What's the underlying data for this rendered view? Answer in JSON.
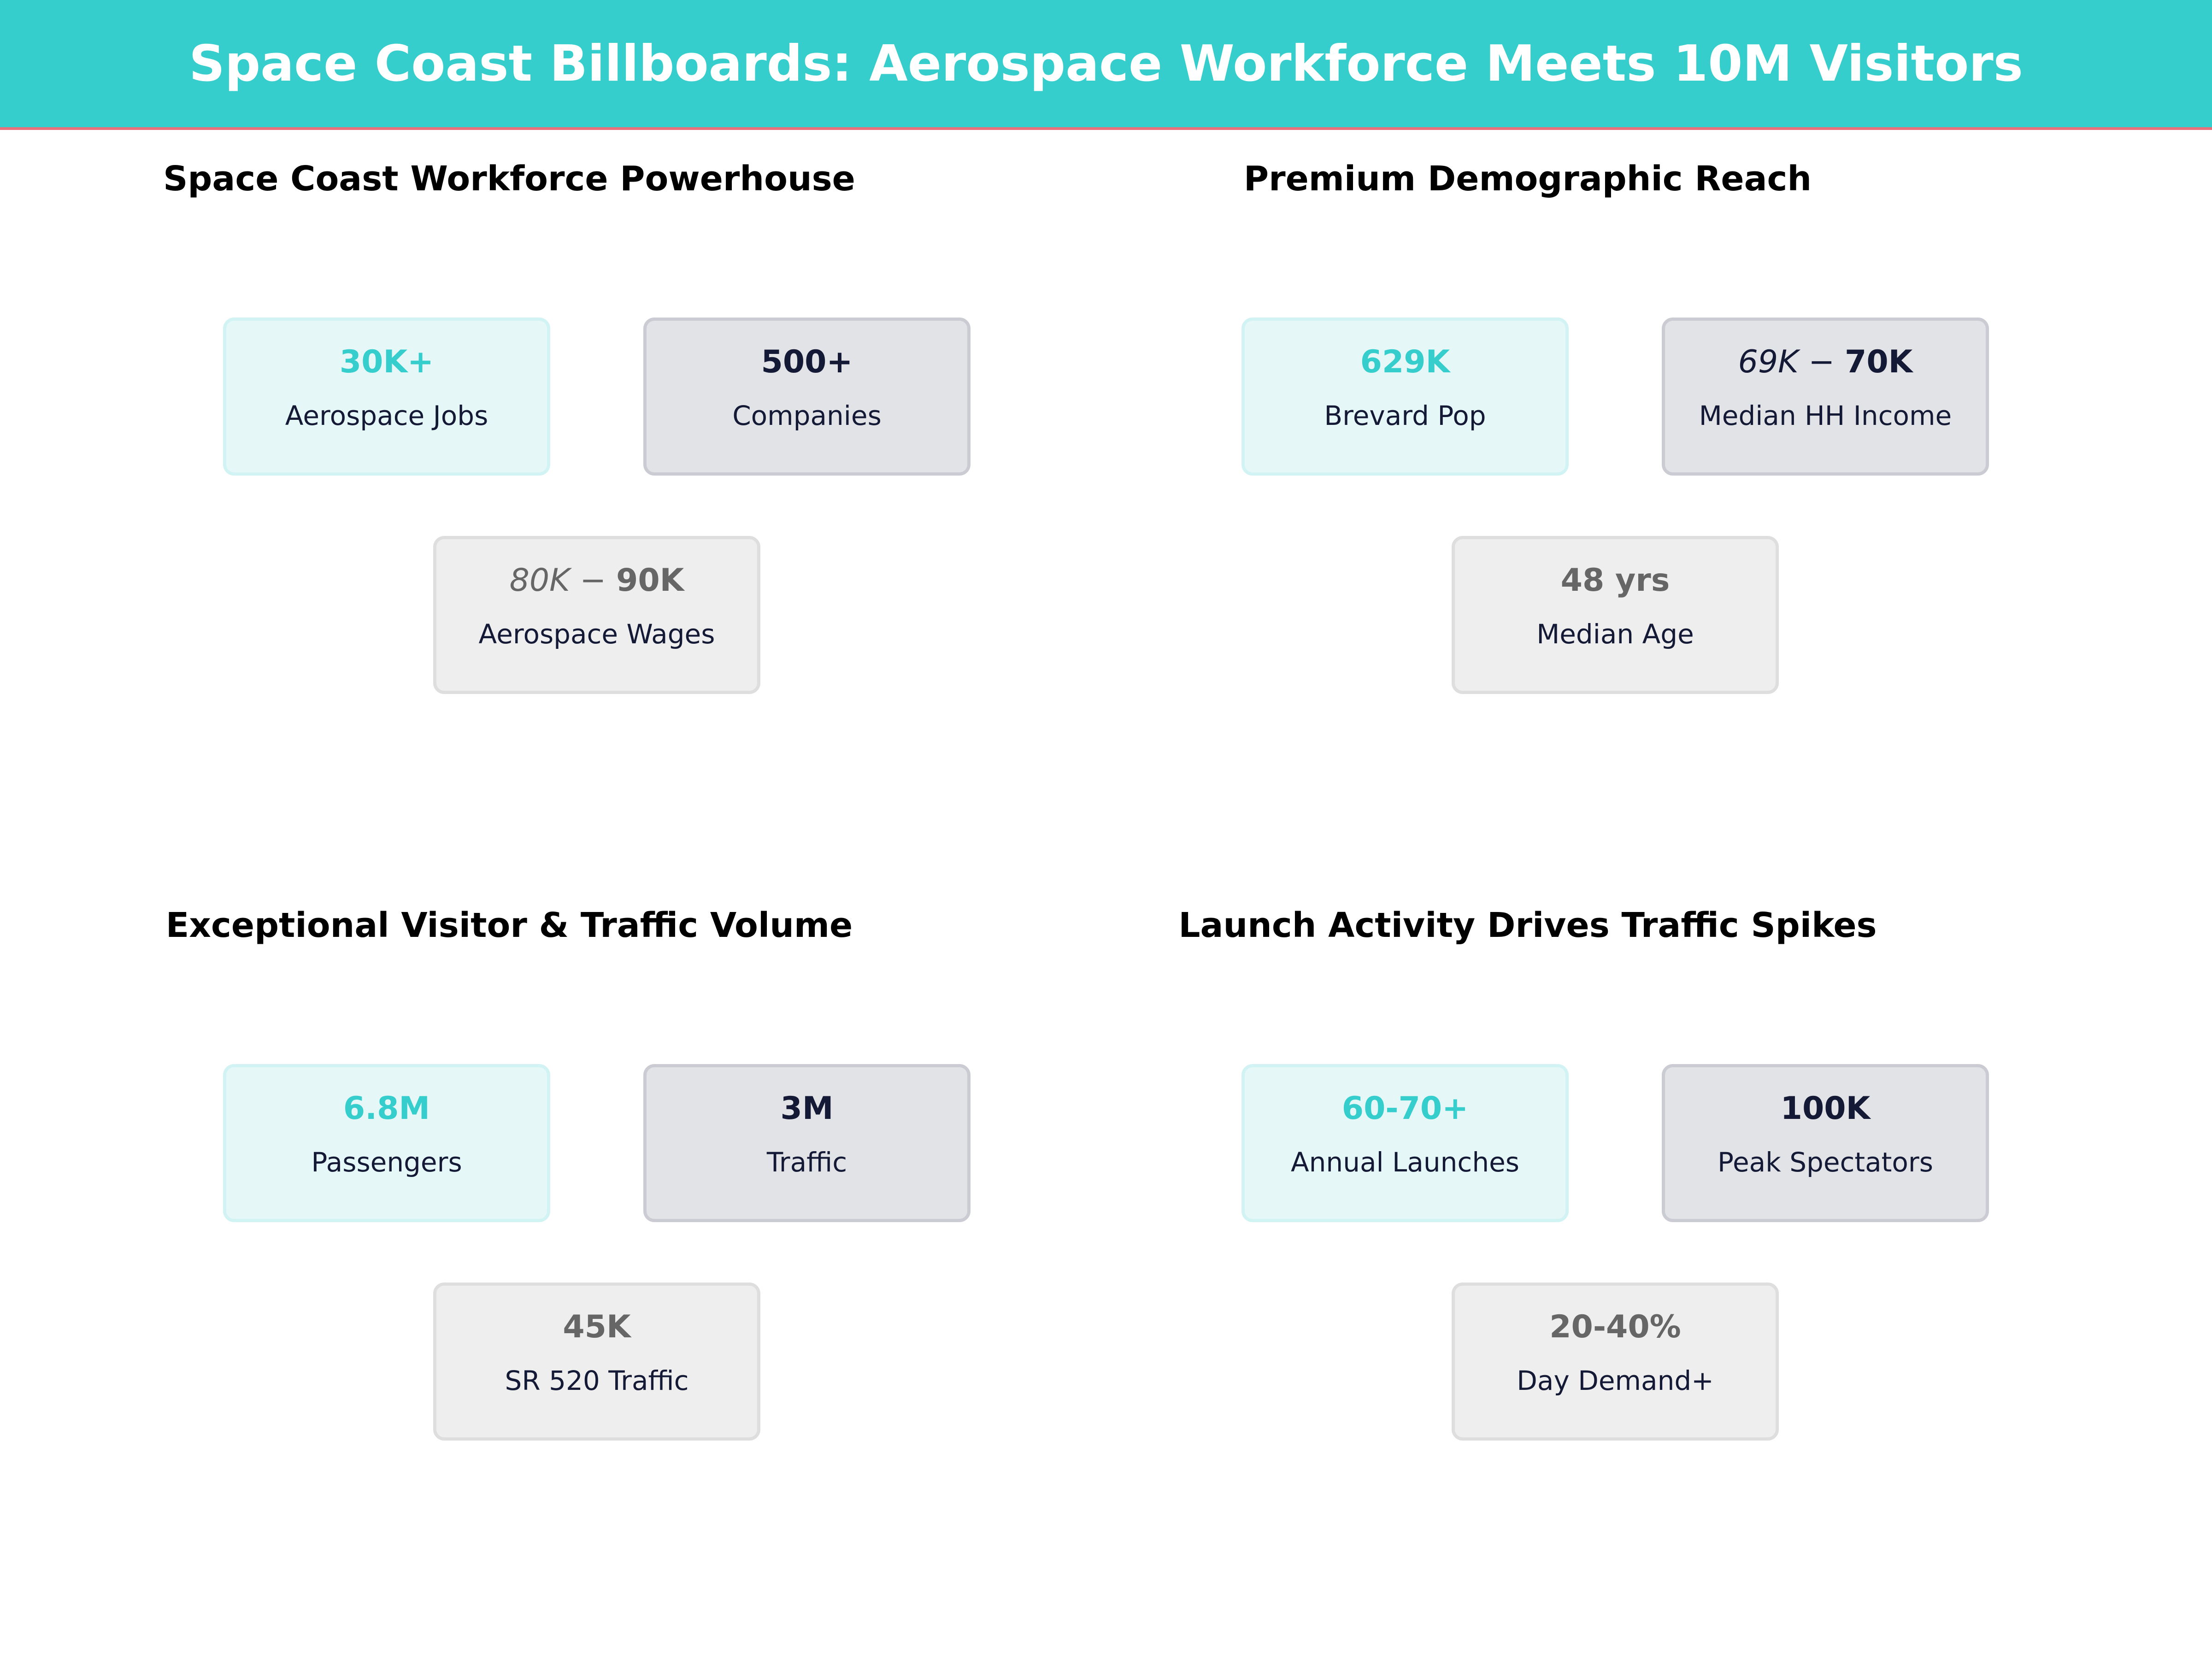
{
  "title": "Space Coast Billboards: Aerospace Workforce Meets 10M Visitors",
  "colors": {
    "accent": "#36cdcd",
    "navy": "#141a36",
    "gray": "#666666",
    "divider": "#e8707a"
  },
  "panels": [
    {
      "title": "Space Coast Workforce Powerhouse",
      "cards": [
        {
          "value": "30K+",
          "label": "Aerospace Jobs"
        },
        {
          "value": "500+",
          "label": "Companies"
        },
        {
          "value_italic": "80K",
          "value_sep": " − ",
          "value": "90K",
          "label": "Aerospace Wages"
        }
      ]
    },
    {
      "title": "Premium Demographic Reach",
      "cards": [
        {
          "value": "629K",
          "label": "Brevard Pop"
        },
        {
          "value_italic": "69K",
          "value_sep": " − ",
          "value": "70K",
          "label": "Median HH Income"
        },
        {
          "value": "48 yrs",
          "label": "Median Age"
        }
      ]
    },
    {
      "title": "Exceptional Visitor & Traffic Volume",
      "cards": [
        {
          "value": "6.8M",
          "label": "Passengers"
        },
        {
          "value": "3M",
          "label": "Traffic"
        },
        {
          "value": "45K",
          "label": "SR 520 Traffic"
        }
      ]
    },
    {
      "title": "Launch Activity Drives Traffic Spikes",
      "cards": [
        {
          "value": "60-70+",
          "label": "Annual Launches"
        },
        {
          "value": "100K",
          "label": "Peak Spectators"
        },
        {
          "value": "20-40%",
          "label": "Day Demand+"
        }
      ]
    }
  ]
}
